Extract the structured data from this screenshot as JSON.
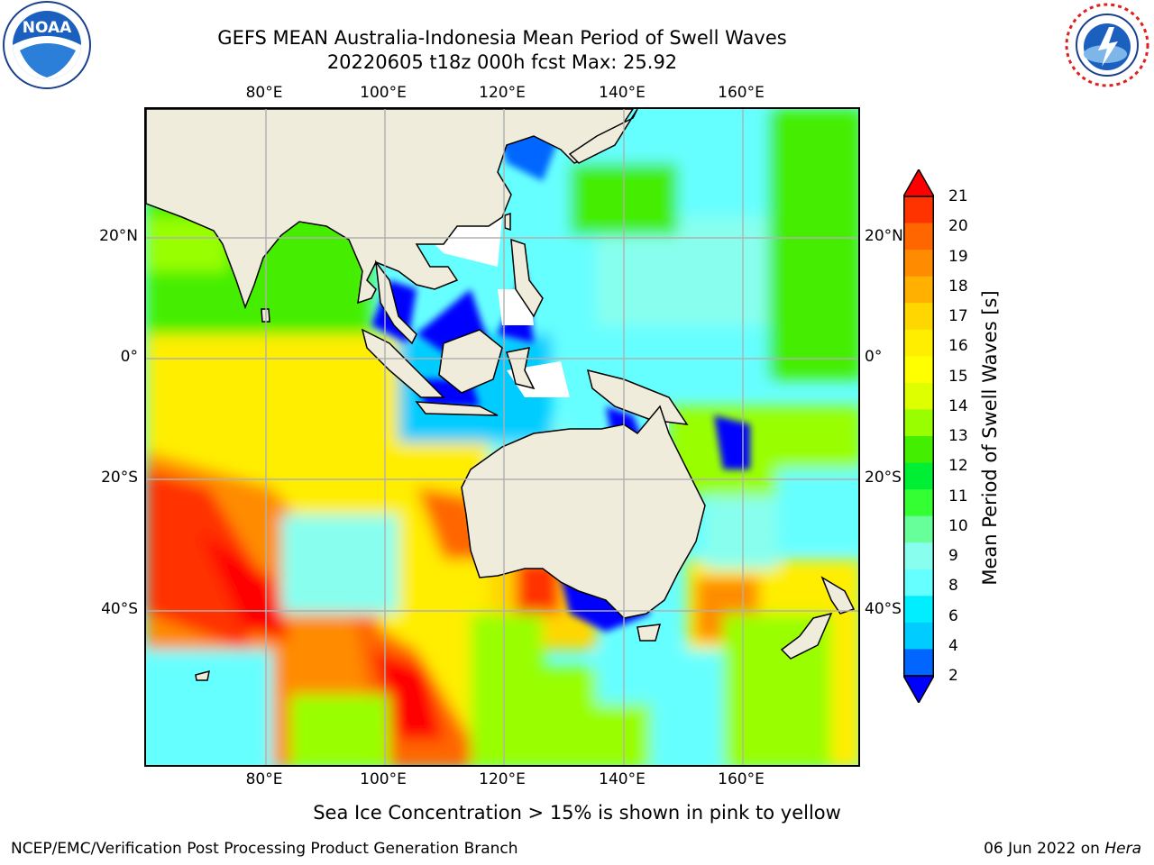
{
  "header": {
    "title_line1": "GEFS MEAN Australia-Indonesia Mean Period of Swell Waves",
    "title_line2": "20220605 t18z 000h fcst   Max: 25.92"
  },
  "logos": {
    "left": "noaa-logo",
    "left_text": "NOAA",
    "right": "nws-logo",
    "right_text": "NATIONAL WEATHER SERVICE"
  },
  "map": {
    "lon_ticks_top": [
      "80°E",
      "100°E",
      "120°E",
      "140°E",
      "160°E"
    ],
    "lon_ticks_bottom": [
      "80°E",
      "100°E",
      "120°E",
      "140°E",
      "160°E"
    ],
    "lat_ticks_left": [
      "20°N",
      "0°",
      "20°S",
      "40°S"
    ],
    "lat_ticks_right": [
      "20°N",
      "0°",
      "20°S",
      "40°S"
    ],
    "colors": {
      "land": "#efecdc",
      "grid": "#b0b0b0",
      "no_data": "#ffffff"
    }
  },
  "colorbar": {
    "label": "Mean Period of Swell Waves [s]",
    "ticks": [
      "21",
      "20",
      "19",
      "18",
      "17",
      "16",
      "15",
      "14",
      "13",
      "12",
      "11",
      "10",
      "9",
      "8",
      "6",
      "4",
      "2"
    ],
    "colors": [
      "#ff0000",
      "#ff3300",
      "#ff6600",
      "#ff8c00",
      "#ffb000",
      "#ffd700",
      "#ffee00",
      "#ffff00",
      "#ddff00",
      "#99ff00",
      "#44ee00",
      "#00ee33",
      "#33ff33",
      "#66ff99",
      "#88ffee",
      "#66ffff",
      "#00eeff",
      "#00ccff",
      "#0066ff",
      "#0000ff"
    ]
  },
  "footer": {
    "note": "Sea Ice Concentration > 15% is shown in pink to yellow",
    "left": "NCEP/EMC/Verification Post Processing Product Generation Branch",
    "right_date": "06 Jun 2022 on ",
    "right_host": "Hera"
  }
}
